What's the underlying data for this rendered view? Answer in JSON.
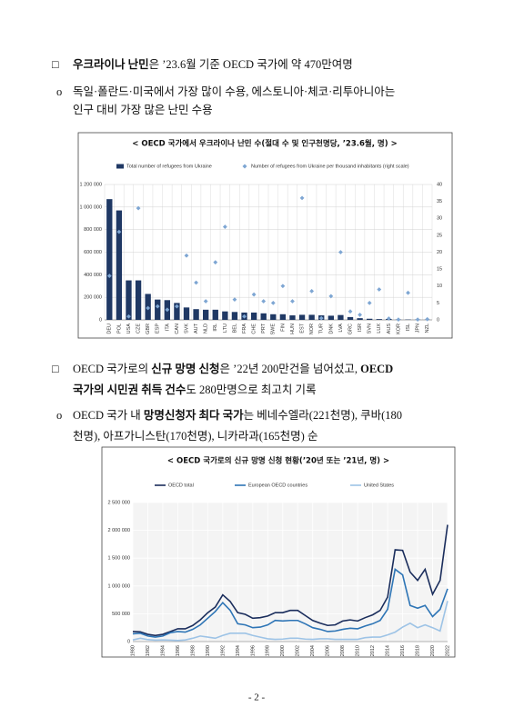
{
  "paragraphs": [
    {
      "bullet": "□",
      "lines": [
        [
          {
            "text": "우크라이나 난민",
            "bold": true
          },
          {
            "text": "은 ’23.6월 기준 OECD 국가에 약 470만여명"
          }
        ]
      ]
    },
    {
      "bullet": "o",
      "lines": [
        [
          {
            "text": "독일·폴란드·미국에서 가장 많이 수용, 에스토니아·체코·리투아니아는"
          }
        ],
        [
          {
            "text": "인구 대비 가장 많은 난민 수용"
          }
        ]
      ]
    },
    {
      "bullet": "□",
      "lines": [
        [
          {
            "text": "OECD 국가로의 "
          },
          {
            "text": "신규 망명 신청",
            "bold": true
          },
          {
            "text": "은 ’22년 200만건을 넘어섰고, "
          },
          {
            "text": "OECD",
            "bold": true
          }
        ],
        [
          {
            "text": "국가의 시민권 취득 건수",
            "bold": true
          },
          {
            "text": "도 280만명으로 최고치 기록"
          }
        ]
      ]
    },
    {
      "bullet": "o",
      "lines": [
        [
          {
            "text": "OECD 국가 내 "
          },
          {
            "text": "망명신청자 최다 국가",
            "bold": true
          },
          {
            "text": "는 베네수엘라(221천명), 쿠바(180"
          }
        ],
        [
          {
            "text": "천명), 아프가니스탄(170천명), 니카라과(165천명) 순"
          }
        ]
      ]
    }
  ],
  "chart_data": [
    {
      "type": "bar",
      "title": "< OECD 국가에서 우크라이나 난민 수(절대 수 및 인구천명당, ’23.6월, 명) >",
      "categories": [
        "DEU",
        "POL",
        "USA",
        "CZE",
        "GBR",
        "ESP",
        "ITA",
        "CAN",
        "SVK",
        "AUT",
        "NLD",
        "IRL",
        "LTU",
        "BEL",
        "FRA",
        "CHE",
        "PRT",
        "SWE",
        "FIN",
        "HUN",
        "EST",
        "NOR",
        "TUR",
        "DNK",
        "LVA",
        "GRC",
        "ISR",
        "SVN",
        "LUX",
        "AUS",
        "KOR",
        "ISL",
        "JPN",
        "NZL"
      ],
      "series": [
        {
          "name": "Total number of refugees from Ukraine",
          "color": "#1f3864",
          "type": "bar",
          "values": [
            1070000,
            970000,
            350000,
            350000,
            230000,
            180000,
            175000,
            150000,
            110000,
            95000,
            90000,
            90000,
            75000,
            70000,
            65000,
            65000,
            58000,
            50000,
            50000,
            40000,
            45000,
            45000,
            40000,
            37000,
            43000,
            25000,
            15000,
            10000,
            7000,
            8000,
            3000,
            3000,
            2000,
            1000
          ]
        },
        {
          "name": "Number of refugees from Ukraine per thousand inhabitants (right scale)",
          "color": "#7ea6d3",
          "type": "scatter",
          "marker": "diamond",
          "axis": "y2",
          "values": [
            13,
            26,
            1,
            33,
            3.5,
            4,
            3,
            4,
            19,
            11,
            5.5,
            17,
            27.5,
            6,
            1,
            7.5,
            5.5,
            5,
            10,
            5.5,
            36,
            8.5,
            0.5,
            7,
            20,
            2.5,
            1.5,
            5,
            9,
            0.4,
            0.1,
            8,
            0.1,
            0.2
          ]
        }
      ],
      "ylim": [
        0,
        1200000
      ],
      "yticks": [
        0,
        {
          "value": 200000,
          "label": "200 000"
        },
        {
          "value": 400000,
          "label": "400 000"
        },
        {
          "value": 600000,
          "label": "600 000"
        },
        {
          "value": 800000,
          "label": "800 000"
        },
        {
          "value": 1000000,
          "label": "1 000 000"
        },
        {
          "value": 1200000,
          "label": "1 200 000"
        }
      ],
      "y2lim": [
        0,
        40
      ],
      "y2ticks": [
        0,
        5,
        10,
        15,
        20,
        25,
        30,
        35,
        40
      ],
      "grid": true
    },
    {
      "type": "line",
      "title": "< OECD 국가로의 신규 망명 신청 현황(’20년 또는 ’21년, 명) >",
      "x": [
        1980,
        1981,
        1982,
        1983,
        1984,
        1985,
        1986,
        1987,
        1988,
        1989,
        1990,
        1991,
        1992,
        1993,
        1994,
        1995,
        1996,
        1997,
        1998,
        1999,
        2000,
        2001,
        2002,
        2003,
        2004,
        2005,
        2006,
        2007,
        2008,
        2009,
        2010,
        2011,
        2012,
        2013,
        2014,
        2015,
        2016,
        2017,
        2018,
        2019,
        2020,
        2021,
        2022
      ],
      "series": [
        {
          "name": "OECD total",
          "color": "#1a2d5c",
          "values": [
            180000,
            175000,
            130000,
            110000,
            130000,
            180000,
            230000,
            230000,
            290000,
            390000,
            520000,
            620000,
            840000,
            720000,
            520000,
            490000,
            420000,
            430000,
            460000,
            520000,
            520000,
            560000,
            560000,
            470000,
            380000,
            330000,
            290000,
            300000,
            370000,
            390000,
            370000,
            430000,
            480000,
            560000,
            800000,
            1650000,
            1640000,
            1250000,
            1100000,
            1300000,
            850000,
            1100000,
            2100000
          ]
        },
        {
          "name": "European OECD countries",
          "color": "#2e75b6",
          "values": [
            140000,
            150000,
            100000,
            80000,
            100000,
            160000,
            180000,
            170000,
            220000,
            300000,
            420000,
            540000,
            700000,
            560000,
            320000,
            300000,
            250000,
            260000,
            300000,
            380000,
            370000,
            380000,
            380000,
            320000,
            250000,
            220000,
            180000,
            190000,
            220000,
            240000,
            230000,
            280000,
            320000,
            380000,
            580000,
            1300000,
            1200000,
            650000,
            600000,
            650000,
            450000,
            580000,
            950000
          ]
        },
        {
          "name": "United States",
          "color": "#9dc3e6",
          "values": [
            30000,
            60000,
            35000,
            25000,
            30000,
            25000,
            20000,
            30000,
            60000,
            100000,
            80000,
            60000,
            110000,
            150000,
            150000,
            150000,
            110000,
            80000,
            50000,
            40000,
            45000,
            60000,
            60000,
            45000,
            40000,
            50000,
            50000,
            40000,
            40000,
            40000,
            40000,
            70000,
            80000,
            80000,
            120000,
            170000,
            260000,
            330000,
            250000,
            300000,
            250000,
            190000,
            730000
          ]
        }
      ],
      "xlim": [
        1980,
        2022
      ],
      "xticks": [
        1980,
        1982,
        1984,
        1986,
        1988,
        1990,
        1992,
        1994,
        1996,
        1998,
        2000,
        2002,
        2004,
        2006,
        2008,
        2010,
        2012,
        2014,
        2016,
        2018,
        2020,
        2022
      ],
      "ylim": [
        0,
        2500000
      ],
      "yticks": [
        0,
        {
          "value": 500000,
          "label": "500 000"
        },
        {
          "value": 1000000,
          "label": "1 000 000"
        },
        {
          "value": 1500000,
          "label": "1 500 000"
        },
        {
          "value": 2000000,
          "label": "2 000 000"
        },
        {
          "value": 2500000,
          "label": "2 500 000"
        }
      ],
      "grid": true
    }
  ],
  "page_number": "- 2 -"
}
